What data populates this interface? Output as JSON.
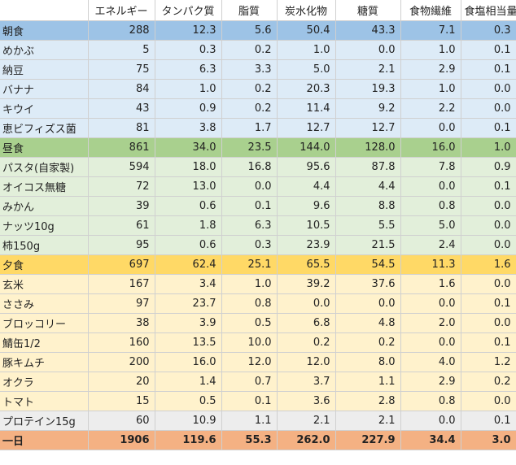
{
  "headers": [
    "",
    "エネルギー",
    "タンパク質",
    "脂質",
    "炭水化物",
    "糖質",
    "食物繊維",
    "食塩相当量"
  ],
  "rows": [
    {
      "kind": "meal",
      "group": "breakfast",
      "name": "朝食",
      "v": [
        "288",
        "12.3",
        "5.6",
        "50.4",
        "43.3",
        "7.1",
        "0.3"
      ]
    },
    {
      "kind": "item",
      "group": "breakfast",
      "name": "めかぶ",
      "v": [
        "5",
        "0.3",
        "0.2",
        "1.0",
        "0.0",
        "1.0",
        "0.1"
      ]
    },
    {
      "kind": "item",
      "group": "breakfast",
      "name": "納豆",
      "v": [
        "75",
        "6.3",
        "3.3",
        "5.0",
        "2.1",
        "2.9",
        "0.1"
      ]
    },
    {
      "kind": "item",
      "group": "breakfast",
      "name": "バナナ",
      "v": [
        "84",
        "1.0",
        "0.2",
        "20.3",
        "19.3",
        "1.0",
        "0.0"
      ]
    },
    {
      "kind": "item",
      "group": "breakfast",
      "name": "キウイ",
      "v": [
        "43",
        "0.9",
        "0.2",
        "11.4",
        "9.2",
        "2.2",
        "0.0"
      ]
    },
    {
      "kind": "item",
      "group": "breakfast",
      "name": "恵ビフィズス菌",
      "v": [
        "81",
        "3.8",
        "1.7",
        "12.7",
        "12.7",
        "0.0",
        "0.1"
      ]
    },
    {
      "kind": "meal",
      "group": "lunch",
      "name": "昼食",
      "v": [
        "861",
        "34.0",
        "23.5",
        "144.0",
        "128.0",
        "16.0",
        "1.0"
      ]
    },
    {
      "kind": "item",
      "group": "lunch",
      "name": "パスタ(自家製)",
      "v": [
        "594",
        "18.0",
        "16.8",
        "95.6",
        "87.8",
        "7.8",
        "0.9"
      ]
    },
    {
      "kind": "item",
      "group": "lunch",
      "name": "オイコス無糖",
      "v": [
        "72",
        "13.0",
        "0.0",
        "4.4",
        "4.4",
        "0.0",
        "0.1"
      ]
    },
    {
      "kind": "item",
      "group": "lunch",
      "name": "みかん",
      "v": [
        "39",
        "0.6",
        "0.1",
        "9.6",
        "8.8",
        "0.8",
        "0.0"
      ]
    },
    {
      "kind": "item",
      "group": "lunch",
      "name": "ナッツ10g",
      "v": [
        "61",
        "1.8",
        "6.3",
        "10.5",
        "5.5",
        "5.0",
        "0.0"
      ]
    },
    {
      "kind": "item",
      "group": "lunch",
      "name": "柿150g",
      "v": [
        "95",
        "0.6",
        "0.3",
        "23.9",
        "21.5",
        "2.4",
        "0.0"
      ]
    },
    {
      "kind": "meal",
      "group": "dinner",
      "name": "夕食",
      "v": [
        "697",
        "62.4",
        "25.1",
        "65.5",
        "54.5",
        "11.3",
        "1.6"
      ]
    },
    {
      "kind": "item",
      "group": "dinner",
      "name": "玄米",
      "v": [
        "167",
        "3.4",
        "1.0",
        "39.2",
        "37.6",
        "1.6",
        "0.0"
      ]
    },
    {
      "kind": "item",
      "group": "dinner",
      "name": "ささみ",
      "v": [
        "97",
        "23.7",
        "0.8",
        "0.0",
        "0.0",
        "0.0",
        "0.1"
      ]
    },
    {
      "kind": "item",
      "group": "dinner",
      "name": "ブロッコリー",
      "v": [
        "38",
        "3.9",
        "0.5",
        "6.8",
        "4.8",
        "2.0",
        "0.0"
      ]
    },
    {
      "kind": "item",
      "group": "dinner",
      "name": "鯖缶1/2",
      "v": [
        "160",
        "13.5",
        "10.0",
        "0.2",
        "0.2",
        "0.0",
        "0.1"
      ]
    },
    {
      "kind": "item",
      "group": "dinner",
      "name": "豚キムチ",
      "v": [
        "200",
        "16.0",
        "12.0",
        "12.0",
        "8.0",
        "4.0",
        "1.2"
      ]
    },
    {
      "kind": "item",
      "group": "dinner",
      "name": "オクラ",
      "v": [
        "20",
        "1.4",
        "0.7",
        "3.7",
        "1.1",
        "2.9",
        "0.2"
      ]
    },
    {
      "kind": "item",
      "group": "dinner",
      "name": "トマト",
      "v": [
        "15",
        "0.5",
        "0.1",
        "3.6",
        "2.8",
        "0.8",
        "0.0"
      ]
    },
    {
      "kind": "snack",
      "group": "snack",
      "name": "プロテイン15g",
      "v": [
        "60",
        "10.9",
        "1.1",
        "2.1",
        "2.1",
        "0.0",
        "0.1"
      ]
    },
    {
      "kind": "total",
      "group": "total",
      "name": "一日",
      "v": [
        "1906",
        "119.6",
        "55.3",
        "262.0",
        "227.9",
        "34.4",
        "3.0"
      ]
    }
  ],
  "colors": {
    "breakfast_header": "#9dc3e6",
    "breakfast_items": "#ddebf7",
    "lunch_header": "#a9d08e",
    "lunch_items": "#e2efda",
    "dinner_header": "#ffd966",
    "dinner_items": "#fff2cc",
    "snack": "#ededed",
    "total": "#f4b183"
  }
}
